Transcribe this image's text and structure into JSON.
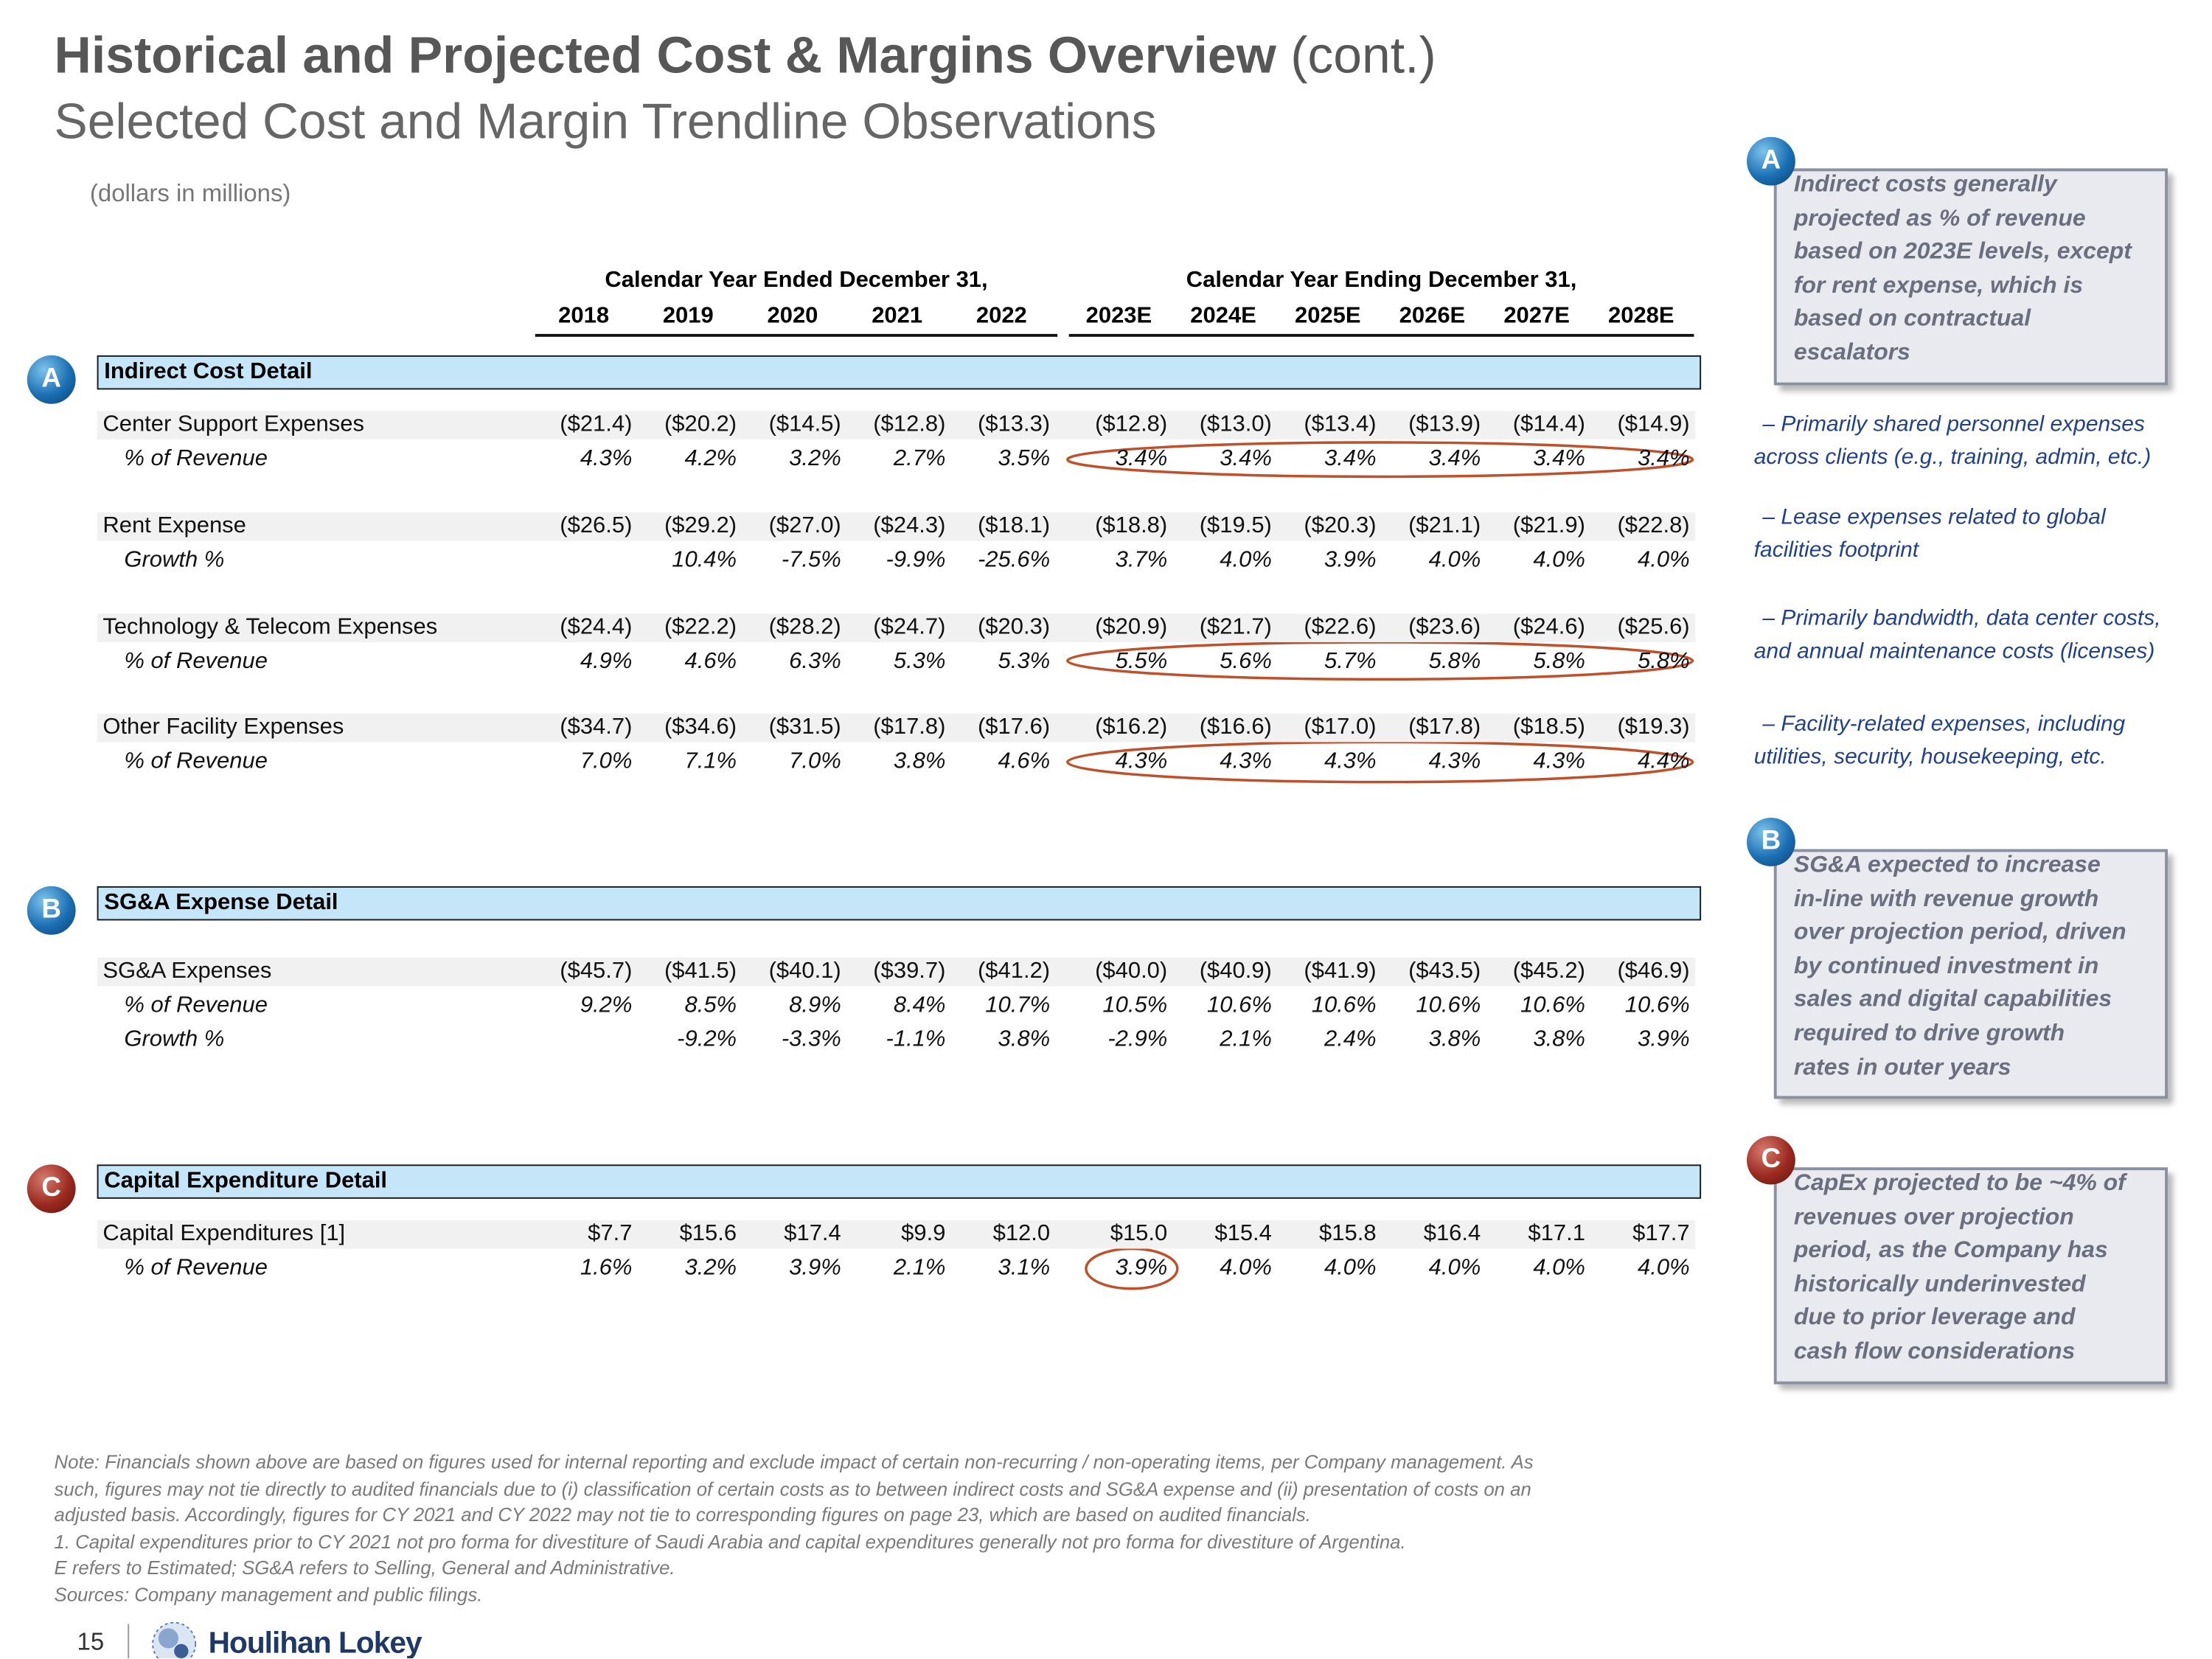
{
  "header": {
    "title": "Historical and Projected Cost & Margins Overview",
    "title_suffix": "(cont.)",
    "subtitle": "Selected Cost and Margin Trendline Observations",
    "units": "(dollars in millions)"
  },
  "table": {
    "historical_header": "Calendar Year Ended December 31,",
    "projected_header": "Calendar Year Ending December 31,",
    "years": [
      "2018",
      "2019",
      "2020",
      "2021",
      "2022",
      "2023E",
      "2024E",
      "2025E",
      "2026E",
      "2027E",
      "2028E"
    ],
    "sections": [
      {
        "badge": "A",
        "title": "Indirect Cost Detail",
        "groups": [
          {
            "rows": [
              {
                "label": "Center Support Expenses",
                "values": [
                  "($21.4)",
                  "($20.2)",
                  "($14.5)",
                  "($12.8)",
                  "($13.3)",
                  "($12.8)",
                  "($13.0)",
                  "($13.4)",
                  "($13.9)",
                  "($14.4)",
                  "($14.9)"
                ]
              },
              {
                "label": "% of Revenue",
                "values": [
                  "4.3%",
                  "4.2%",
                  "3.2%",
                  "2.7%",
                  "3.5%",
                  "3.4%",
                  "3.4%",
                  "3.4%",
                  "3.4%",
                  "3.4%",
                  "3.4%"
                ]
              }
            ]
          },
          {
            "rows": [
              {
                "label": "Rent Expense",
                "values": [
                  "($26.5)",
                  "($29.2)",
                  "($27.0)",
                  "($24.3)",
                  "($18.1)",
                  "($18.8)",
                  "($19.5)",
                  "($20.3)",
                  "($21.1)",
                  "($21.9)",
                  "($22.8)"
                ]
              },
              {
                "label": "Growth %",
                "values": [
                  null,
                  "10.4%",
                  "-7.5%",
                  "-9.9%",
                  "-25.6%",
                  "3.7%",
                  "4.0%",
                  "3.9%",
                  "4.0%",
                  "4.0%",
                  "4.0%"
                ]
              }
            ]
          },
          {
            "rows": [
              {
                "label": "Technology & Telecom Expenses",
                "values": [
                  "($24.4)",
                  "($22.2)",
                  "($28.2)",
                  "($24.7)",
                  "($20.3)",
                  "($20.9)",
                  "($21.7)",
                  "($22.6)",
                  "($23.6)",
                  "($24.6)",
                  "($25.6)"
                ]
              },
              {
                "label": "% of Revenue",
                "values": [
                  "4.9%",
                  "4.6%",
                  "6.3%",
                  "5.3%",
                  "5.3%",
                  "5.5%",
                  "5.6%",
                  "5.7%",
                  "5.8%",
                  "5.8%",
                  "5.8%"
                ]
              }
            ]
          },
          {
            "rows": [
              {
                "label": "Other Facility Expenses",
                "values": [
                  "($34.7)",
                  "($34.6)",
                  "($31.5)",
                  "($17.8)",
                  "($17.6)",
                  "($16.2)",
                  "($16.6)",
                  "($17.0)",
                  "($17.8)",
                  "($18.5)",
                  "($19.3)"
                ]
              },
              {
                "label": "% of Revenue",
                "values": [
                  "7.0%",
                  "7.1%",
                  "7.0%",
                  "3.8%",
                  "4.6%",
                  "4.3%",
                  "4.3%",
                  "4.3%",
                  "4.3%",
                  "4.3%",
                  "4.4%"
                ]
              }
            ]
          }
        ]
      },
      {
        "badge": "B",
        "title": "SG&A Expense Detail",
        "groups": [
          {
            "rows": [
              {
                "label": "SG&A Expenses",
                "values": [
                  "($45.7)",
                  "($41.5)",
                  "($40.1)",
                  "($39.7)",
                  "($41.2)",
                  "($40.0)",
                  "($40.9)",
                  "($41.9)",
                  "($43.5)",
                  "($45.2)",
                  "($46.9)"
                ]
              },
              {
                "label": "% of Revenue",
                "values": [
                  "9.2%",
                  "8.5%",
                  "8.9%",
                  "8.4%",
                  "10.7%",
                  "10.5%",
                  "10.6%",
                  "10.6%",
                  "10.6%",
                  "10.6%",
                  "10.6%"
                ]
              },
              {
                "label": "Growth %",
                "values": [
                  null,
                  "-9.2%",
                  "-3.3%",
                  "-1.1%",
                  "3.8%",
                  "-2.9%",
                  "2.1%",
                  "2.4%",
                  "3.8%",
                  "3.8%",
                  "3.9%"
                ]
              }
            ]
          }
        ]
      },
      {
        "badge": "C",
        "title": "Capital Expenditure Detail",
        "groups": [
          {
            "rows": [
              {
                "label": "Capital Expenditures [1]",
                "values": [
                  "$7.7",
                  "$15.6",
                  "$17.4",
                  "$9.9",
                  "$12.0",
                  "$15.0",
                  "$15.4",
                  "$15.8",
                  "$16.4",
                  "$17.1",
                  "$17.7"
                ]
              },
              {
                "label": "% of Revenue",
                "values": [
                  "1.6%",
                  "3.2%",
                  "3.9%",
                  "2.1%",
                  "3.1%",
                  "3.9%",
                  "4.0%",
                  "4.0%",
                  "4.0%",
                  "4.0%",
                  "4.0%"
                ]
              }
            ]
          }
        ]
      }
    ]
  },
  "sidebar": {
    "callouts": [
      {
        "badge": "A",
        "lines": [
          "Indirect costs generally",
          "projected as % of revenue",
          "based on 2023E levels, except",
          "for rent expense, which is",
          "based on contractual",
          "escalators"
        ]
      },
      {
        "badge": "B",
        "lines": [
          "SG&A expected to increase",
          "in-line with revenue growth",
          "over projection period, driven",
          "by continued investment in",
          "sales and digital capabilities",
          "required to drive growth",
          "rates in outer years"
        ]
      },
      {
        "badge": "C",
        "lines": [
          "CapEx projected to be ~4% of",
          "revenues over projection",
          "period, as the Company has",
          "historically underinvested",
          "due to prior leverage and",
          "cash flow considerations"
        ]
      }
    ],
    "bullets": [
      {
        "lines": [
          "– Primarily shared personnel expenses",
          "across clients (e.g., training, admin, etc.)"
        ]
      },
      {
        "lines": [
          "– Lease expenses related to global",
          "facilities footprint"
        ]
      },
      {
        "lines": [
          "– Primarily bandwidth, data center costs,",
          "and annual maintenance costs (licenses)"
        ]
      },
      {
        "lines": [
          "– Facility-related expenses, including",
          "utilities, security, housekeeping, etc."
        ]
      }
    ]
  },
  "notes": [
    "Note: Financials shown above are based on figures used for internal reporting and exclude impact of certain non-recurring / non-operating items, per Company management. As",
    "such, figures may not tie directly to audited financials due to (i) classification of certain costs as to between indirect costs and SG&A expense and (ii) presentation of costs on an",
    "adjusted basis. Accordingly, figures for CY 2021 and CY 2022 may not tie to corresponding figures on page 23, which are based on audited financials.",
    "1.  Capital expenditures prior to CY 2021 not pro forma for divestiture of Saudi Arabia and capital expenditures generally not pro forma for divestiture of Argentina.",
    "E refers to Estimated; SG&A refers to Selling, General and Administrative.",
    "Sources: Company management and public filings."
  ],
  "footer": {
    "page": "15",
    "brand": "Houlihan Lokey"
  }
}
